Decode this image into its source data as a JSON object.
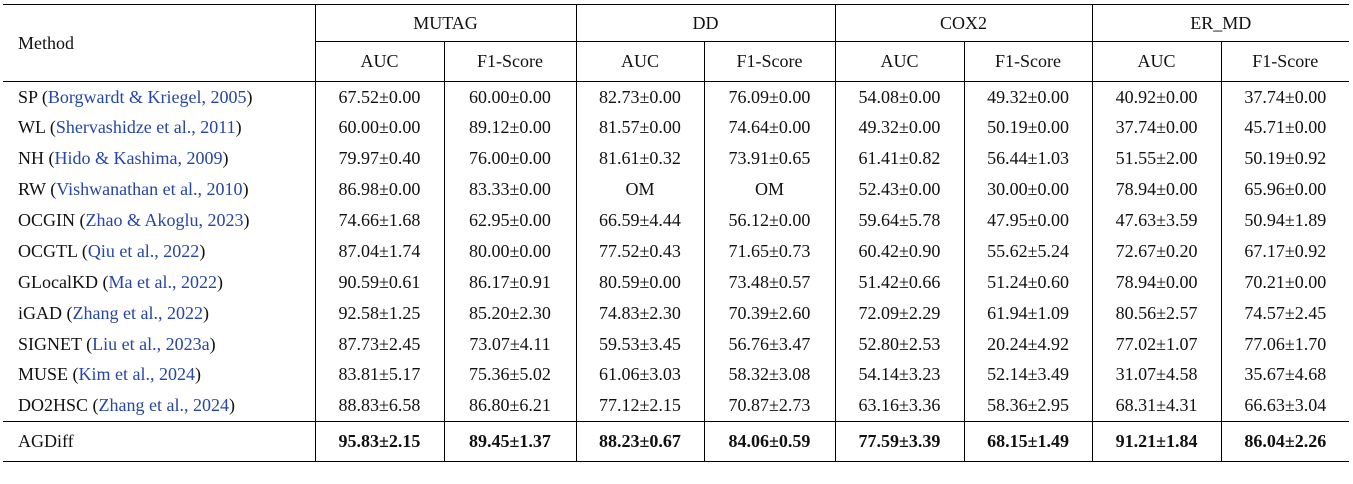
{
  "header": {
    "method": "Method",
    "datasets": [
      "MUTAG",
      "DD",
      "COX2",
      "ER_MD"
    ],
    "metrics": [
      "AUC",
      "F1-Score"
    ]
  },
  "rows": [
    {
      "name": "SP",
      "cite": "Borgwardt & Kriegel, 2005",
      "vals": [
        "67.52±0.00",
        "60.00±0.00",
        "82.73±0.00",
        "76.09±0.00",
        "54.08±0.00",
        "49.32±0.00",
        "40.92±0.00",
        "37.74±0.00"
      ]
    },
    {
      "name": "WL",
      "cite": "Shervashidze et al., 2011",
      "vals": [
        "60.00±0.00",
        "89.12±0.00",
        "81.57±0.00",
        "74.64±0.00",
        "49.32±0.00",
        "50.19±0.00",
        "37.74±0.00",
        "45.71±0.00"
      ]
    },
    {
      "name": "NH",
      "cite": "Hido & Kashima, 2009",
      "vals": [
        "79.97±0.40",
        "76.00±0.00",
        "81.61±0.32",
        "73.91±0.65",
        "61.41±0.82",
        "56.44±1.03",
        "51.55±2.00",
        "50.19±0.92"
      ]
    },
    {
      "name": "RW",
      "cite": "Vishwanathan et al., 2010",
      "vals": [
        "86.98±0.00",
        "83.33±0.00",
        "OM",
        "OM",
        "52.43±0.00",
        "30.00±0.00",
        "78.94±0.00",
        "65.96±0.00"
      ]
    },
    {
      "name": "OCGIN",
      "cite": "Zhao & Akoglu, 2023",
      "vals": [
        "74.66±1.68",
        "62.95±0.00",
        "66.59±4.44",
        "56.12±0.00",
        "59.64±5.78",
        "47.95±0.00",
        "47.63±3.59",
        "50.94±1.89"
      ]
    },
    {
      "name": "OCGTL",
      "cite": "Qiu et al., 2022",
      "vals": [
        "87.04±1.74",
        "80.00±0.00",
        "77.52±0.43",
        "71.65±0.73",
        "60.42±0.90",
        "55.62±5.24",
        "72.67±0.20",
        "67.17±0.92"
      ]
    },
    {
      "name": "GLocalKD",
      "cite": "Ma et al., 2022",
      "vals": [
        "90.59±0.61",
        "86.17±0.91",
        "80.59±0.00",
        "73.48±0.57",
        "51.42±0.66",
        "51.24±0.60",
        "78.94±0.00",
        "70.21±0.00"
      ]
    },
    {
      "name": "iGAD",
      "cite": "Zhang et al., 2022",
      "vals": [
        "92.58±1.25",
        "85.20±2.30",
        "74.83±2.30",
        "70.39±2.60",
        "72.09±2.29",
        "61.94±1.09",
        "80.56±2.57",
        "74.57±2.45"
      ]
    },
    {
      "name": "SIGNET",
      "cite": "Liu et al., 2023a",
      "vals": [
        "87.73±2.45",
        "73.07±4.11",
        "59.53±3.45",
        "56.76±3.47",
        "52.80±2.53",
        "20.24±4.92",
        "77.02±1.07",
        "77.06±1.70"
      ]
    },
    {
      "name": "MUSE",
      "cite": "Kim et al., 2024",
      "vals": [
        "83.81±5.17",
        "75.36±5.02",
        "61.06±3.03",
        "58.32±3.08",
        "54.14±3.23",
        "52.14±3.49",
        "31.07±4.58",
        "35.67±4.68"
      ]
    },
    {
      "name": "DO2HSC",
      "cite": "Zhang et al., 2024",
      "vals": [
        "88.83±6.58",
        "86.80±6.21",
        "77.12±2.15",
        "70.87±2.73",
        "63.16±3.36",
        "58.36±2.95",
        "68.31±4.31",
        "66.63±3.04"
      ]
    }
  ],
  "ours": {
    "name": "AGDiff",
    "vals": [
      "95.83±2.15",
      "89.45±1.37",
      "88.23±0.67",
      "84.06±0.59",
      "77.59±3.39",
      "68.15±1.49",
      "91.21±1.84",
      "86.04±2.26"
    ]
  }
}
